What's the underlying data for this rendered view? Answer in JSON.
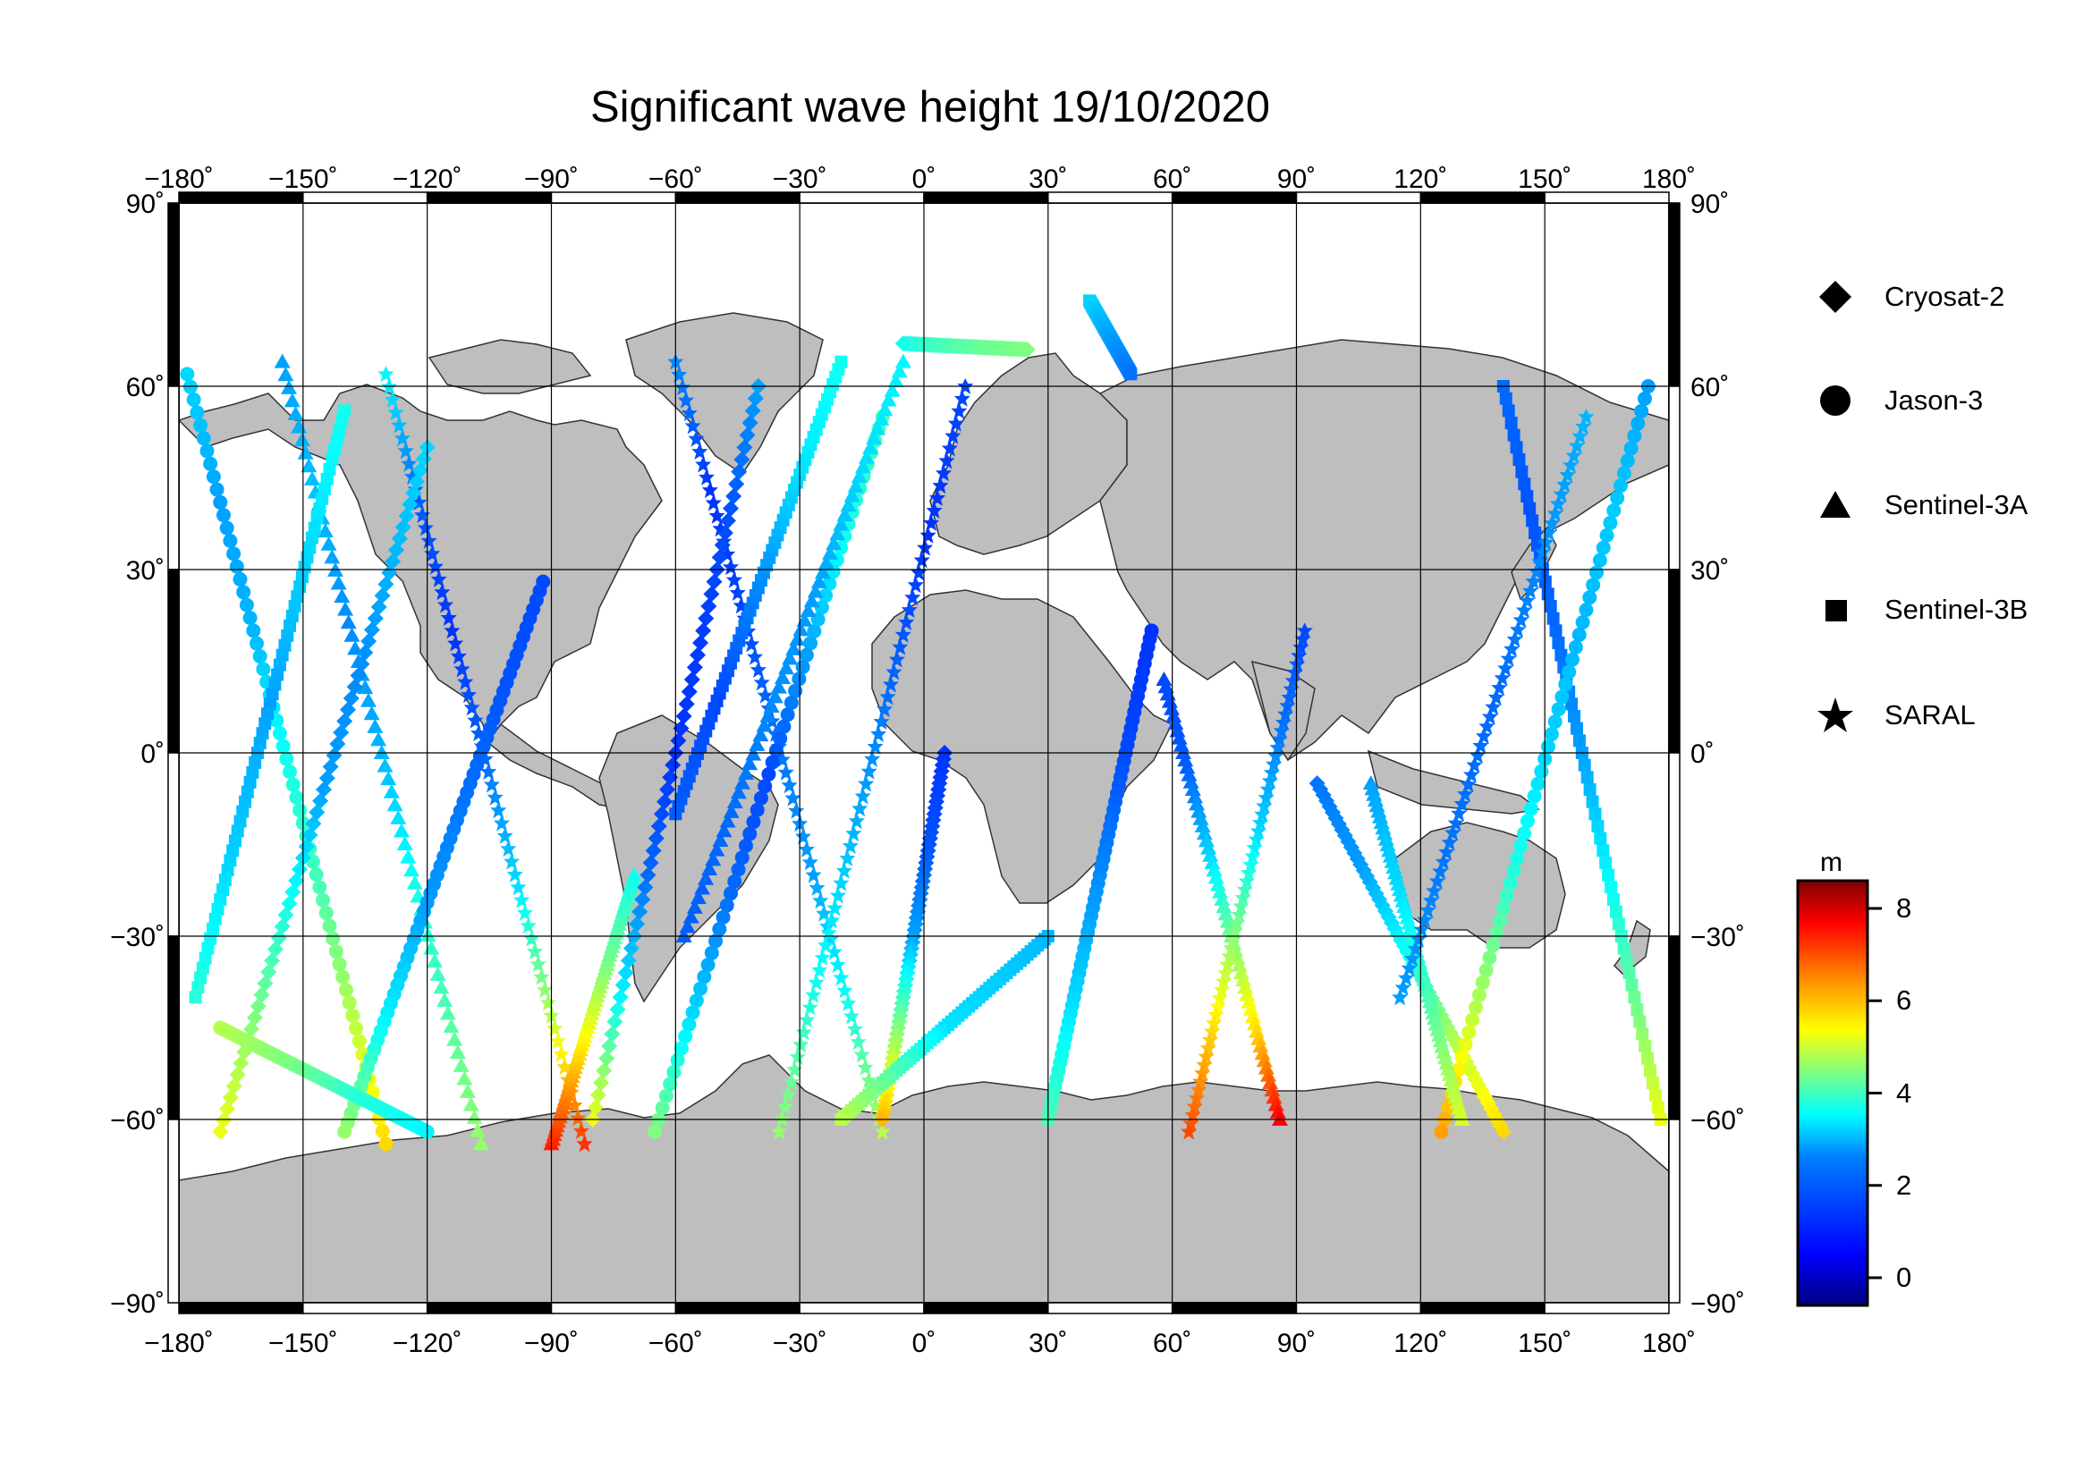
{
  "title": "Significant wave height 19/10/2020",
  "axes": {
    "lon_ticks": [
      -180,
      -150,
      -120,
      -90,
      -60,
      -30,
      0,
      30,
      60,
      90,
      120,
      150,
      180
    ],
    "lat_ticks": [
      90,
      60,
      30,
      0,
      -30,
      -60,
      -90
    ],
    "lon_labels": [
      "−180˚",
      "−150˚",
      "−120˚",
      "−90˚",
      "−60˚",
      "−30˚",
      "0˚",
      "30˚",
      "60˚",
      "90˚",
      "120˚",
      "150˚",
      "180˚"
    ],
    "lat_labels_left": [
      "90˚",
      "60˚",
      "30˚",
      "0˚",
      "−30˚",
      "−60˚",
      "−90˚"
    ],
    "lat_labels_right": [
      "90˚",
      "60˚",
      "30˚",
      "0˚",
      "−30˚",
      "−60˚",
      "−90˚"
    ]
  },
  "legend": {
    "items": [
      {
        "label": "Cryosat-2",
        "symbol": "diamond"
      },
      {
        "label": "Jason-3",
        "symbol": "circle"
      },
      {
        "label": "Sentinel-3A",
        "symbol": "triangle"
      },
      {
        "label": "Sentinel-3B",
        "symbol": "square"
      },
      {
        "label": "SARAL",
        "symbol": "star"
      }
    ]
  },
  "colorbar": {
    "unit": "m",
    "min": -0.6,
    "max": 8.6,
    "ticks": [
      0,
      2,
      4,
      6,
      8
    ],
    "tick_labels": [
      "0",
      "2",
      "4",
      "6",
      "8"
    ],
    "colormap": [
      "#00007f",
      "#0000ff",
      "#007fff",
      "#00ffff",
      "#7fff7f",
      "#ffff00",
      "#ff7f00",
      "#ff0000",
      "#7f0000"
    ]
  },
  "colors": {
    "land": "#bebebe",
    "ocean": "#ffffff",
    "grid": "#000000"
  },
  "chart_data": {
    "type": "scatter",
    "title": "Significant wave height 19/10/2020",
    "xlabel": "",
    "ylabel": "",
    "xlim": [
      -180,
      180
    ],
    "ylim": [
      -90,
      90
    ],
    "grid": true,
    "legend_position": "right",
    "value_unit": "m",
    "tracks": [
      {
        "start": [
          -178,
          62
        ],
        "end": [
          -130,
          -64
        ],
        "swh": [
          2.5,
          2.0,
          2.2,
          3.0,
          3.5,
          4.5,
          5.5
        ]
      },
      {
        "start": [
          -155,
          64
        ],
        "end": [
          -107,
          -64
        ],
        "swh": [
          2.0,
          2.3,
          1.8,
          2.2,
          3.0,
          3.6,
          4.2
        ]
      },
      {
        "start": [
          -130,
          62
        ],
        "end": [
          -82,
          -64
        ],
        "swh": [
          2.8,
          1.4,
          1.0,
          1.5,
          2.6,
          4.5,
          7.0
        ]
      },
      {
        "start": [
          -120,
          50
        ],
        "end": [
          -170,
          -62
        ],
        "swh": [
          2.5,
          2.2,
          1.8,
          2.0,
          3.0,
          4.0,
          5.0
        ]
      },
      {
        "start": [
          -140,
          56
        ],
        "end": [
          -176,
          -40
        ],
        "swh": [
          3.0,
          2.5,
          2.0,
          2.4,
          3.2
        ]
      },
      {
        "start": [
          -92,
          28
        ],
        "end": [
          -140,
          -62
        ],
        "swh": [
          1.2,
          1.3,
          1.6,
          2.0,
          2.8,
          4.2
        ]
      },
      {
        "start": [
          -90,
          -64
        ],
        "end": [
          -70,
          -20
        ],
        "swh": [
          7.2,
          5.5,
          4.0,
          3.0
        ]
      },
      {
        "start": [
          -60,
          64
        ],
        "end": [
          -10,
          -62
        ],
        "swh": [
          1.8,
          1.0,
          1.2,
          1.6,
          2.0,
          3.0,
          4.5
        ]
      },
      {
        "start": [
          -40,
          60
        ],
        "end": [
          -80,
          -60
        ],
        "swh": [
          2.0,
          1.3,
          1.1,
          1.0,
          1.5,
          2.8,
          5.0
        ]
      },
      {
        "start": [
          -20,
          64
        ],
        "end": [
          -60,
          -10
        ],
        "swh": [
          3.0,
          2.6,
          1.8,
          1.2,
          1.4
        ]
      },
      {
        "start": [
          -10,
          55
        ],
        "end": [
          -65,
          -62
        ],
        "swh": [
          3.5,
          3.0,
          2.0,
          1.2,
          1.5,
          2.5,
          4.0
        ]
      },
      {
        "start": [
          -58,
          -30
        ],
        "end": [
          -5,
          64
        ],
        "swh": [
          1.4,
          1.5,
          1.8,
          2.0,
          2.5,
          2.8
        ]
      },
      {
        "start": [
          -35,
          -62
        ],
        "end": [
          10,
          60
        ],
        "swh": [
          4.2,
          3.0,
          2.2,
          1.5,
          1.0,
          1.2
        ]
      },
      {
        "start": [
          5,
          0
        ],
        "end": [
          -10,
          -60
        ],
        "swh": [
          1.0,
          1.3,
          2.0,
          4.0,
          5.8
        ]
      },
      {
        "start": [
          30,
          -30
        ],
        "end": [
          -20,
          -60
        ],
        "swh": [
          2.2,
          2.6,
          4.5
        ]
      },
      {
        "start": [
          55,
          20
        ],
        "end": [
          30,
          -60
        ],
        "swh": [
          1.0,
          1.2,
          1.8,
          2.5,
          3.5
        ]
      },
      {
        "start": [
          58,
          12
        ],
        "end": [
          86,
          -60
        ],
        "swh": [
          1.2,
          1.4,
          2.5,
          4.0,
          5.5,
          7.5
        ]
      },
      {
        "start": [
          92,
          20
        ],
        "end": [
          64,
          -62
        ],
        "swh": [
          1.2,
          1.6,
          2.5,
          4.0,
          5.5,
          6.8
        ]
      },
      {
        "start": [
          95,
          -5
        ],
        "end": [
          140,
          -62
        ],
        "swh": [
          1.6,
          2.0,
          3.0,
          4.5,
          5.5
        ]
      },
      {
        "start": [
          140,
          60
        ],
        "end": [
          178,
          -60
        ],
        "swh": [
          1.5,
          1.3,
          1.5,
          2.0,
          2.8,
          3.8,
          5.0
        ]
      },
      {
        "start": [
          175,
          60
        ],
        "end": [
          125,
          -62
        ],
        "swh": [
          2.0,
          2.4,
          2.2,
          2.5,
          3.2,
          4.5,
          6.0
        ]
      },
      {
        "start": [
          108,
          -5
        ],
        "end": [
          130,
          -60
        ],
        "swh": [
          2.0,
          2.6,
          3.6,
          4.8
        ]
      },
      {
        "start": [
          160,
          55
        ],
        "end": [
          115,
          -40
        ],
        "swh": [
          2.2,
          1.8,
          1.5,
          1.6,
          2.0
        ]
      },
      {
        "start": [
          -5,
          67
        ],
        "end": [
          25,
          66
        ],
        "swh": [
          3.0,
          3.5,
          3.8,
          4.0
        ]
      },
      {
        "start": [
          40,
          74
        ],
        "end": [
          50,
          62
        ],
        "swh": [
          2.5,
          2.0,
          1.6
        ]
      },
      {
        "start": [
          -170,
          -45
        ],
        "end": [
          -120,
          -62
        ],
        "swh": [
          4.5,
          4.0,
          3.2,
          2.8
        ]
      }
    ],
    "peak_swh_m": 8.2
  }
}
